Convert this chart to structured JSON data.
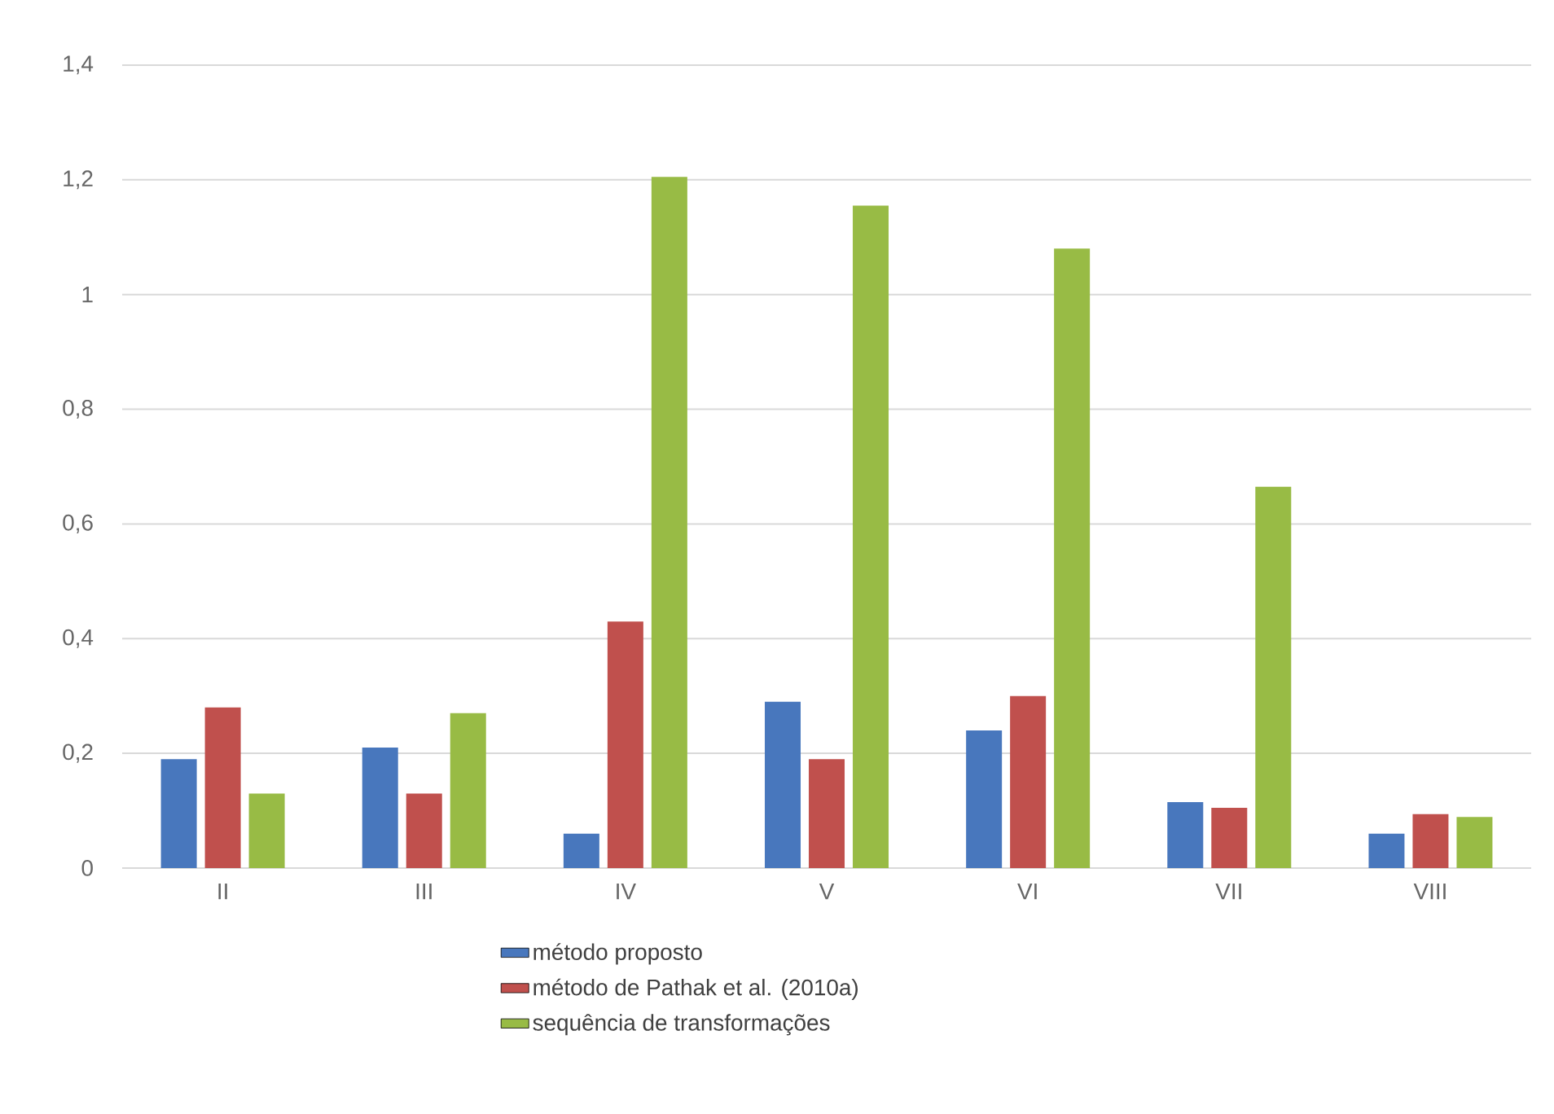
{
  "chart_data": {
    "type": "bar",
    "categories": [
      "II",
      "III",
      "IV",
      "V",
      "VI",
      "VII",
      "VIII"
    ],
    "series": [
      {
        "name": "método proposto",
        "color": "#4877bd",
        "values": [
          0.19,
          0.21,
          0.06,
          0.29,
          0.24,
          0.115,
          0.06
        ]
      },
      {
        "name": "método de Pathak et al. (2010a)",
        "color": "#c0504d",
        "values": [
          0.28,
          0.13,
          0.43,
          0.19,
          0.3,
          0.105,
          0.094
        ]
      },
      {
        "name": "sequência de transformações",
        "color": "#98bb45",
        "values": [
          0.13,
          0.27,
          1.205,
          1.155,
          1.08,
          0.665,
          0.089
        ]
      }
    ],
    "ylim": [
      0,
      1.4
    ],
    "yticks": [
      0,
      {
        "value": 0.2,
        "label": "0,2"
      },
      {
        "value": 0.4,
        "label": "0,4"
      },
      {
        "value": 0.6,
        "label": "0,6"
      },
      {
        "value": 0.8,
        "label": "0,8"
      },
      1,
      {
        "value": 1.2,
        "label": "1,2"
      },
      {
        "value": 1.4,
        "label": "1,4"
      }
    ],
    "grid": "y",
    "legend": "bottom"
  }
}
